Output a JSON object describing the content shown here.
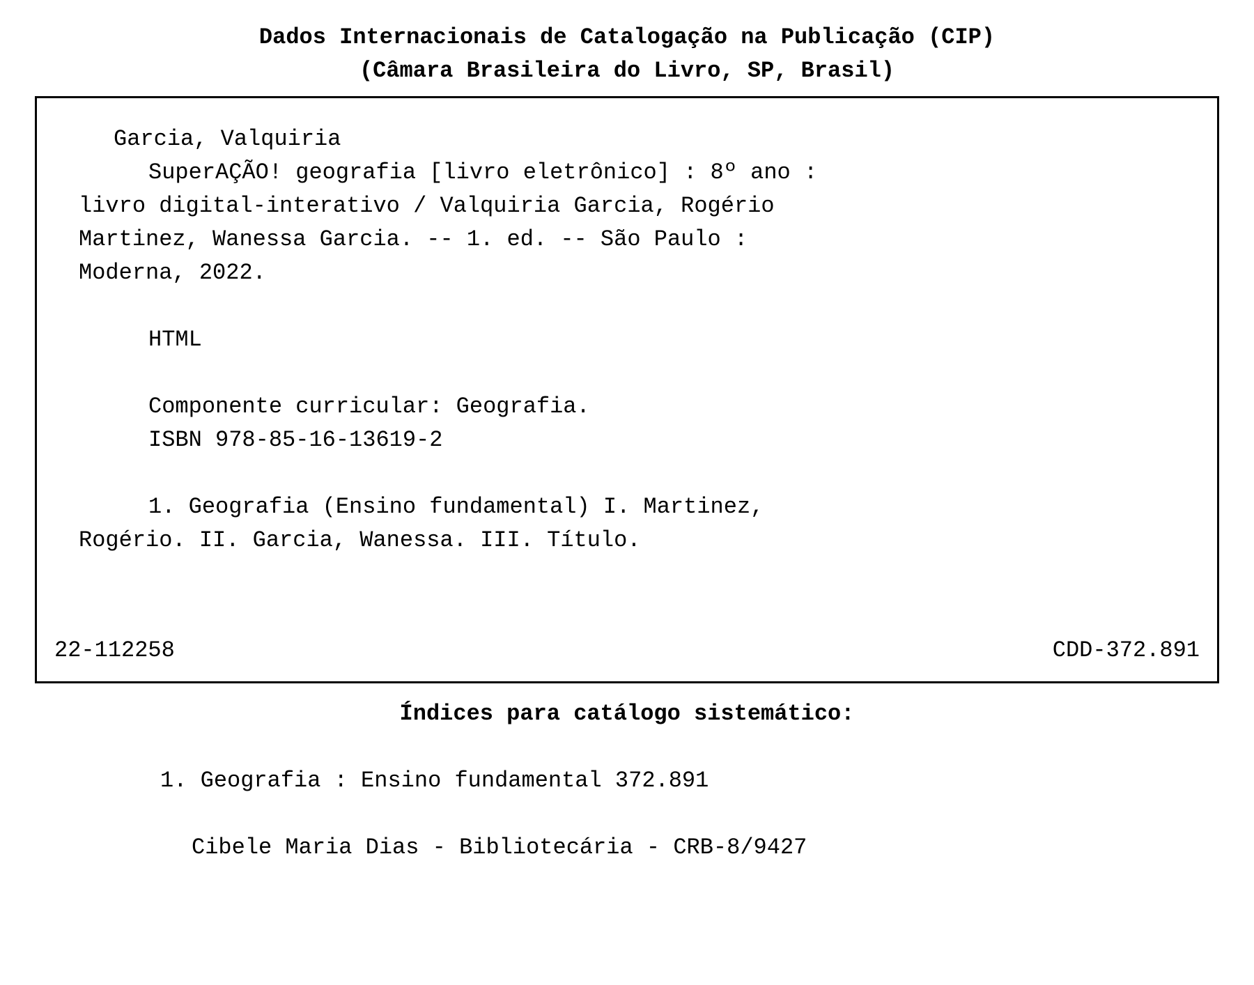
{
  "header": {
    "line1": "Dados Internacionais de Catalogação na Publicação (CIP)",
    "line2": "(Câmara Brasileira do Livro, SP, Brasil)"
  },
  "catalog": {
    "author": "Garcia, Valquiria",
    "title_line1": "SuperAÇÃO! geografia [livro eletrônico] : 8º ano :",
    "title_line2": "livro digital-interativo / Valquiria Garcia, Rogério",
    "title_line3": "Martinez, Wanessa Garcia. -- 1. ed. -- São Paulo :",
    "title_line4": "Moderna, 2022.",
    "format": "HTML",
    "component": "Componente curricular: Geografia.",
    "isbn": "ISBN 978-85-16-13619-2",
    "subject_line1": "1. Geografia (Ensino fundamental) I. Martinez,",
    "subject_line2": "Rogério. II. Garcia, Wanessa. III. Título.",
    "record_number": "22-112258",
    "cdd": "CDD-372.891"
  },
  "index": {
    "header": "Índices para catálogo sistemático:",
    "entry": "1. Geografia : Ensino fundamental   372.891",
    "librarian": "Cibele Maria Dias - Bibliotecária - CRB-8/9427"
  }
}
